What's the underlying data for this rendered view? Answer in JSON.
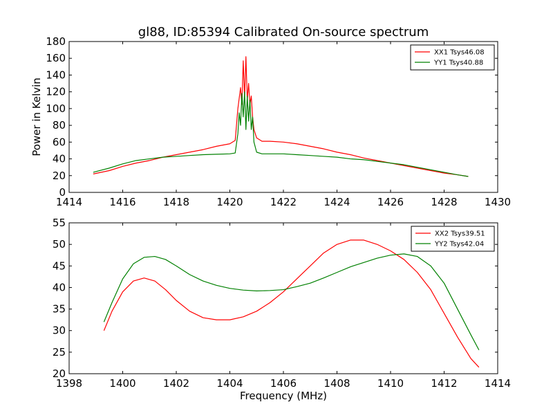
{
  "figure": {
    "title": "gl88, ID:85394 Calibrated On-source spectrum",
    "xlabel": "Frequency (MHz)",
    "top_ylabel": "Power in Kelvin"
  },
  "chart_data": [
    {
      "type": "line",
      "title": "gl88, ID:85394 Calibrated On-source spectrum",
      "xlabel": "",
      "ylabel": "Power in Kelvin",
      "xlim": [
        1414,
        1430
      ],
      "ylim": [
        0,
        180
      ],
      "xticks": [
        "1414",
        "1416",
        "1418",
        "1420",
        "1422",
        "1424",
        "1426",
        "1428",
        "1430"
      ],
      "yticks": [
        "0",
        "20",
        "40",
        "60",
        "80",
        "100",
        "120",
        "140",
        "160",
        "180"
      ],
      "grid": false,
      "legend_position": "top-right",
      "series": [
        {
          "name": "XX1 Tsys46.08",
          "color": "#ff0000",
          "x": [
            1414.9,
            1415.5,
            1416,
            1416.5,
            1417,
            1417.5,
            1418,
            1418.5,
            1419,
            1419.5,
            1420,
            1420.2,
            1420.3,
            1420.4,
            1420.45,
            1420.5,
            1420.55,
            1420.6,
            1420.65,
            1420.7,
            1420.75,
            1420.8,
            1420.85,
            1420.9,
            1421,
            1421.2,
            1421.5,
            1422,
            1422.5,
            1423,
            1423.5,
            1424,
            1424.5,
            1425,
            1425.5,
            1426,
            1426.5,
            1427,
            1427.5,
            1428,
            1428.5,
            1428.9
          ],
          "values": [
            22,
            26,
            31,
            35,
            38,
            42,
            45,
            48,
            51,
            55,
            58,
            62,
            100,
            125,
            105,
            157,
            112,
            162,
            110,
            130,
            105,
            115,
            90,
            75,
            65,
            61,
            61,
            60,
            58,
            55,
            52,
            48,
            45,
            41,
            38,
            35,
            32,
            29,
            26,
            23,
            21,
            19
          ]
        },
        {
          "name": "YY1 Tsys40.88",
          "color": "#008000",
          "x": [
            1414.9,
            1415.5,
            1416,
            1416.5,
            1417,
            1417.5,
            1418,
            1418.5,
            1419,
            1419.5,
            1420,
            1420.2,
            1420.3,
            1420.35,
            1420.4,
            1420.45,
            1420.5,
            1420.55,
            1420.6,
            1420.65,
            1420.7,
            1420.75,
            1420.8,
            1420.85,
            1420.9,
            1421,
            1421.2,
            1421.5,
            1422,
            1422.5,
            1423,
            1423.5,
            1424,
            1424.5,
            1425,
            1425.5,
            1426,
            1426.5,
            1427,
            1427.5,
            1428,
            1428.5,
            1428.9
          ],
          "values": [
            24,
            29,
            34,
            38,
            40,
            42,
            43,
            44,
            45,
            45.5,
            46,
            47,
            70,
            95,
            80,
            118,
            90,
            120,
            75,
            115,
            85,
            110,
            75,
            90,
            60,
            48,
            46,
            46,
            46,
            45,
            44,
            43,
            42,
            40,
            39,
            37,
            35,
            33,
            30,
            27,
            24,
            21,
            19
          ]
        }
      ]
    },
    {
      "type": "line",
      "title": "",
      "xlabel": "Frequency (MHz)",
      "ylabel": "",
      "xlim": [
        1398,
        1414
      ],
      "ylim": [
        20,
        55
      ],
      "xticks": [
        "1398",
        "1400",
        "1402",
        "1404",
        "1406",
        "1408",
        "1410",
        "1412",
        "1414"
      ],
      "yticks": [
        "20",
        "25",
        "30",
        "35",
        "40",
        "45",
        "50",
        "55"
      ],
      "grid": false,
      "legend_position": "top-right",
      "series": [
        {
          "name": "XX2 Tsys39.51",
          "color": "#ff0000",
          "x": [
            1399.3,
            1399.6,
            1400,
            1400.4,
            1400.8,
            1401.2,
            1401.6,
            1402,
            1402.5,
            1403,
            1403.5,
            1404,
            1404.5,
            1405,
            1405.5,
            1406,
            1406.5,
            1407,
            1407.5,
            1408,
            1408.5,
            1409,
            1409.5,
            1410,
            1410.5,
            1411,
            1411.5,
            1412,
            1412.5,
            1413,
            1413.3
          ],
          "values": [
            30,
            34.5,
            39,
            41.5,
            42.2,
            41.5,
            39.5,
            37,
            34.5,
            33,
            32.5,
            32.5,
            33.2,
            34.5,
            36.5,
            39,
            42,
            45,
            48,
            50,
            51,
            51,
            50,
            48.5,
            46.5,
            43.5,
            39.5,
            34,
            28.5,
            23.5,
            21.5
          ]
        },
        {
          "name": "YY2 Tsys42.04",
          "color": "#008000",
          "x": [
            1399.3,
            1399.6,
            1400,
            1400.4,
            1400.8,
            1401.2,
            1401.6,
            1402,
            1402.5,
            1403,
            1403.5,
            1404,
            1404.5,
            1405,
            1405.5,
            1406,
            1406.5,
            1407,
            1407.5,
            1408,
            1408.5,
            1409,
            1409.5,
            1410,
            1410.5,
            1411,
            1411.5,
            1412,
            1412.5,
            1413,
            1413.3
          ],
          "values": [
            32,
            36.5,
            42,
            45.5,
            47,
            47.2,
            46.5,
            45,
            43,
            41.5,
            40.5,
            39.8,
            39.4,
            39.2,
            39.3,
            39.5,
            40.2,
            41,
            42.2,
            43.5,
            44.8,
            45.8,
            46.8,
            47.5,
            47.8,
            47.2,
            45,
            41,
            35,
            29,
            25.5
          ]
        }
      ]
    }
  ]
}
